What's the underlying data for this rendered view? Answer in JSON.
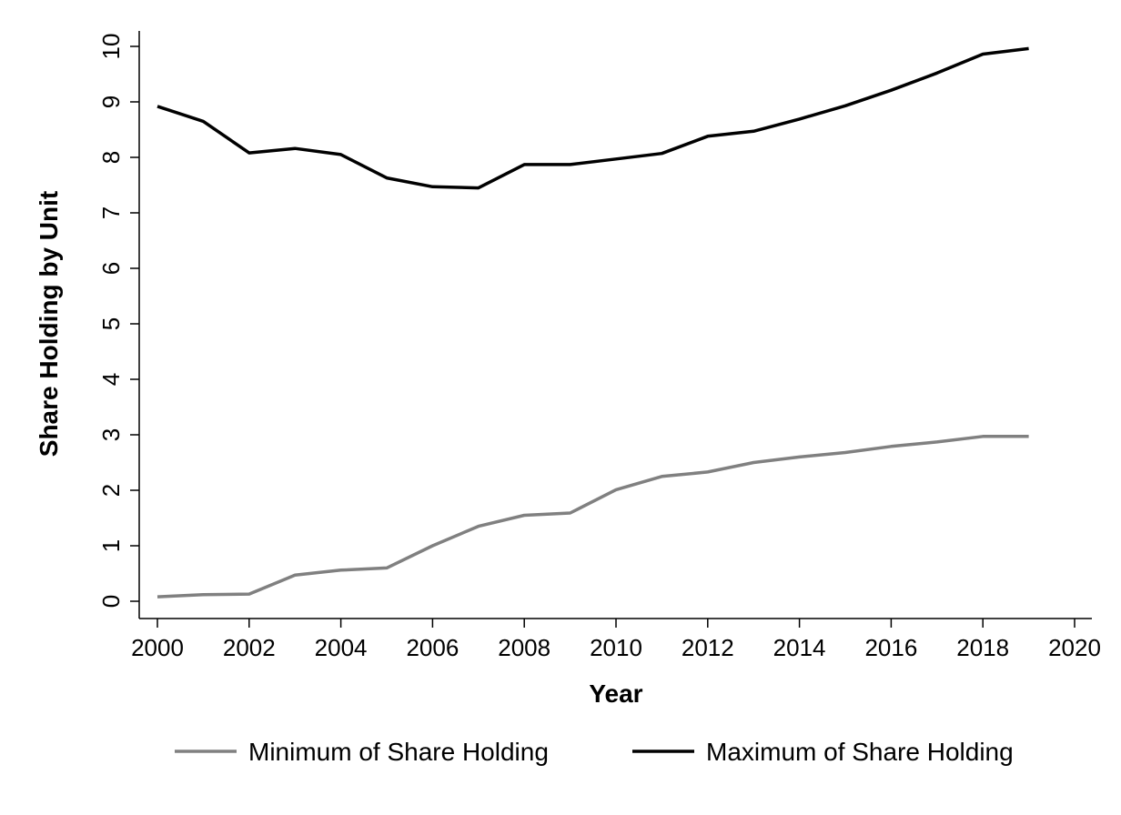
{
  "chart_data": {
    "type": "line",
    "title": "",
    "xlabel": "Year",
    "ylabel": "Share Holding by Unit",
    "xlim": [
      2000,
      2020
    ],
    "ylim": [
      0,
      10
    ],
    "x_ticks": [
      2000,
      2002,
      2004,
      2006,
      2008,
      2010,
      2012,
      2014,
      2016,
      2018,
      2020
    ],
    "y_ticks": [
      0,
      1,
      2,
      3,
      4,
      5,
      6,
      7,
      8,
      9,
      10
    ],
    "grid": false,
    "legend_position": "bottom",
    "x": [
      2000,
      2001,
      2002,
      2003,
      2004,
      2005,
      2006,
      2007,
      2008,
      2009,
      2010,
      2011,
      2012,
      2013,
      2014,
      2015,
      2016,
      2017,
      2018,
      2019
    ],
    "series": [
      {
        "name": "Minimum of Share Holding",
        "color": "#808080",
        "values": [
          0.08,
          0.12,
          0.13,
          0.47,
          0.56,
          0.6,
          1.0,
          1.35,
          1.55,
          1.59,
          2.01,
          2.25,
          2.33,
          2.5,
          2.6,
          2.68,
          2.79,
          2.87,
          2.97,
          2.97
        ]
      },
      {
        "name": "Maximum of Share Holding",
        "color": "#000000",
        "values": [
          8.92,
          8.65,
          8.08,
          8.16,
          8.05,
          7.63,
          7.47,
          7.45,
          7.87,
          7.87,
          7.97,
          8.07,
          8.38,
          8.47,
          8.69,
          8.93,
          9.21,
          9.52,
          9.86,
          9.96
        ]
      }
    ]
  }
}
